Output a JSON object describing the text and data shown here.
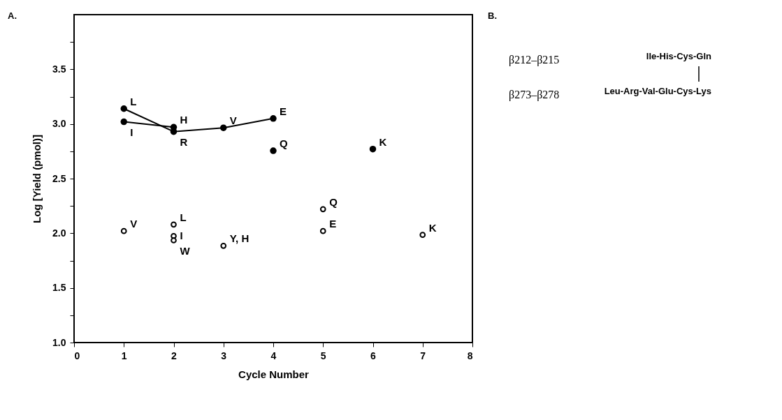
{
  "chart_data": {
    "type": "line",
    "xlabel": "Cycle Number",
    "ylabel": "Log [Yield (pmol)]",
    "xlim": [
      0,
      8
    ],
    "xticks": [
      0,
      1,
      2,
      3,
      4,
      5,
      6,
      7,
      8
    ],
    "ylim": [
      1,
      4
    ],
    "yticks": [
      {
        "value": 1,
        "label": "1.0"
      },
      {
        "value": 1.25,
        "label": null
      },
      {
        "value": 1.5,
        "label": "1.5"
      },
      {
        "value": 1.75,
        "label": null
      },
      {
        "value": 2,
        "label": "2.0"
      },
      {
        "value": 2.25,
        "label": null
      },
      {
        "value": 2.5,
        "label": "2.5"
      },
      {
        "value": 2.75,
        "label": null
      },
      {
        "value": 3,
        "label": "3.0"
      },
      {
        "value": 3.25,
        "label": null
      },
      {
        "value": 3.5,
        "label": "3.5"
      },
      {
        "value": 3.75,
        "label": null
      }
    ],
    "grid": false,
    "marker": "circle",
    "series": [
      {
        "color": "#000000",
        "x": [
          1,
          2,
          3,
          4,
          5,
          6
        ],
        "values": [
          3.14,
          2.93,
          2.965,
          3.05,
          null,
          2.77
        ]
      },
      {
        "color": "#000000",
        "x": [
          1,
          2,
          3,
          4
        ],
        "values": [
          3.02,
          2.97,
          null,
          2.755
        ]
      },
      {
        "type": "scatter",
        "color": "#000000",
        "x": [
          1,
          2,
          2,
          2,
          3,
          5,
          5,
          7
        ],
        "values": [
          2.02,
          2.08,
          1.975,
          1.935,
          1.885,
          2.22,
          2.02,
          1.985
        ]
      }
    ],
    "annotations": [
      "A.",
      "B.",
      "β212–β215",
      "Ile-His-Cys-Gln",
      "β273–β278",
      "Leu-Arg-Val-Glu-Cys-Lys",
      {
        "text": "L",
        "x": 1,
        "y": 3.14
      },
      {
        "text": "I",
        "x": 1,
        "y": 3.02
      },
      {
        "text": "H",
        "x": 2,
        "y": 2.97
      },
      {
        "text": "R",
        "x": 2,
        "y": 2.93
      },
      {
        "text": "V",
        "x": 3,
        "y": 2.965
      },
      {
        "text": "E",
        "x": 4,
        "y": 3.05
      },
      {
        "text": "Q",
        "x": 4,
        "y": 2.755
      },
      {
        "text": "K",
        "x": 6,
        "y": 2.77
      },
      {
        "text": "V",
        "x": 1,
        "y": 2.02
      },
      {
        "text": "L",
        "x": 2,
        "y": 2.08
      },
      {
        "text": "I",
        "x": 2,
        "y": 1.975
      },
      {
        "text": "W",
        "x": 2,
        "y": 1.935
      },
      {
        "text": "Y, H",
        "x": 3,
        "y": 1.885
      },
      {
        "text": "Q",
        "x": 5,
        "y": 2.22
      },
      {
        "text": "E",
        "x": 5,
        "y": 2.02
      },
      {
        "text": "K",
        "x": 7,
        "y": 1.985
      }
    ]
  }
}
